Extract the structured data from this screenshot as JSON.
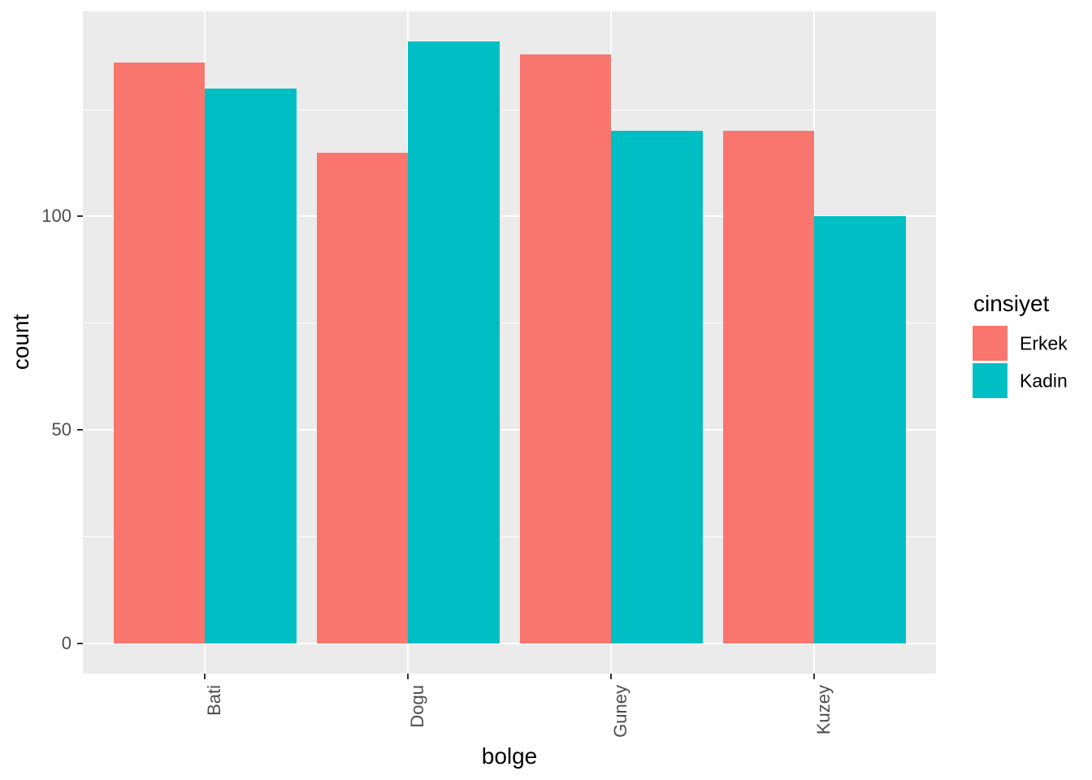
{
  "chart_data": {
    "type": "bar",
    "orientation": "vertical",
    "grouping": "dodge",
    "categories": [
      "Bati",
      "Dogu",
      "Guney",
      "Kuzey"
    ],
    "series": [
      {
        "name": "Erkek",
        "color": "#F8766D",
        "values": [
          136,
          115,
          138,
          120
        ]
      },
      {
        "name": "Kadin",
        "color": "#00BFC4",
        "values": [
          130,
          141,
          120,
          100
        ]
      }
    ],
    "xlabel": "bolge",
    "ylabel": "count",
    "legend_title": "cinsiyet",
    "legend_position": "right",
    "y_ticks": [
      0,
      50,
      100
    ],
    "y_minor_ticks": [
      25,
      75,
      125
    ],
    "ylim": [
      -7.05,
      148.05
    ],
    "grid": "major-and-minor-horizontal, major-vertical",
    "panel_background": "#EBEBEB",
    "grid_color": "#FFFFFF",
    "tick_label_color": "#4D4D4D",
    "tick_mark_color": "#333333",
    "axis_title_color": "#000000",
    "figure_background": "#FFFFFF"
  }
}
